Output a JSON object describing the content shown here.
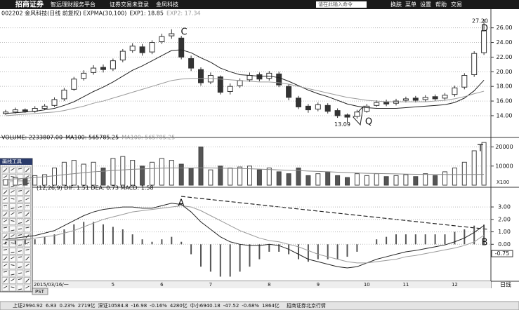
{
  "header": {
    "logo": "招商证券",
    "menu": [
      "智远理财服务平台",
      "证券交易未登录",
      "金凤科技"
    ],
    "command": "请在此输入命令",
    "buttons": [
      "换肤",
      "菜单",
      "设置",
      "帮助",
      "交易"
    ]
  },
  "chart_data": [
    {
      "type": "candlestick",
      "title": "002202 金风科技(日线 前复权) EXPMA(30,100)",
      "legend": [
        "EXP1: 18.85",
        "EXP2: 17.34"
      ],
      "categories": [
        "2015/03/16/一",
        null,
        null,
        null,
        null,
        null,
        null,
        null,
        null,
        null,
        null,
        "5",
        null,
        null,
        null,
        null,
        "6",
        null,
        null,
        null,
        null,
        "7",
        null,
        null,
        null,
        null,
        null,
        "8",
        null,
        null,
        null,
        null,
        "9",
        null,
        null,
        null,
        null,
        "10",
        null,
        null,
        null,
        "11",
        null,
        null,
        null,
        null,
        "12",
        null,
        null,
        null
      ],
      "open": [
        14.3,
        14.5,
        14.8,
        14.6,
        15.0,
        15.4,
        16.3,
        17.6,
        19.1,
        19.9,
        20.6,
        20.4,
        21.6,
        22.9,
        23.4,
        22.7,
        24.1,
        24.9,
        24.6,
        21.8,
        20.3,
        18.6,
        19.3,
        17.3,
        18.1,
        18.9,
        19.6,
        19.1,
        19.7,
        18.0,
        16.4,
        15.3,
        14.9,
        15.4,
        14.7,
        14.1,
        13.9,
        14.6,
        15.4,
        15.9,
        15.7,
        16.1,
        16.4,
        16.2,
        16.6,
        16.4,
        16.9,
        17.9,
        19.6,
        22.6
      ],
      "high": [
        14.8,
        15.1,
        15.0,
        15.3,
        15.6,
        16.5,
        17.8,
        19.3,
        20.2,
        20.9,
        21.0,
        21.8,
        23.1,
        23.9,
        23.8,
        24.3,
        25.2,
        25.8,
        24.9,
        22.2,
        20.6,
        19.9,
        19.5,
        18.4,
        19.1,
        19.9,
        19.9,
        20.1,
        20.0,
        18.3,
        16.7,
        15.6,
        15.8,
        15.7,
        15.0,
        14.3,
        14.8,
        15.6,
        16.1,
        16.2,
        16.3,
        16.6,
        16.7,
        16.8,
        16.9,
        17.1,
        18.1,
        19.8,
        22.8,
        27.2
      ],
      "low": [
        14.1,
        14.3,
        14.4,
        14.4,
        14.8,
        15.2,
        16.0,
        17.4,
        18.8,
        19.6,
        19.9,
        20.1,
        21.3,
        22.6,
        22.2,
        22.4,
        23.8,
        24.5,
        21.7,
        20.1,
        18.1,
        18.3,
        16.9,
        16.9,
        17.8,
        18.6,
        18.7,
        18.8,
        17.9,
        16.1,
        14.9,
        14.4,
        14.6,
        14.3,
        13.7,
        13.09,
        13.6,
        14.4,
        15.2,
        15.3,
        15.4,
        15.8,
        15.8,
        15.9,
        16.0,
        16.1,
        16.6,
        17.6,
        19.3,
        22.3
      ],
      "close": [
        14.5,
        14.8,
        14.6,
        15.0,
        15.3,
        16.2,
        17.5,
        19.0,
        19.8,
        20.5,
        20.3,
        21.5,
        22.8,
        23.5,
        22.6,
        24.0,
        24.8,
        25.2,
        22.0,
        20.5,
        18.5,
        19.5,
        17.2,
        18.0,
        18.8,
        19.5,
        19.0,
        19.8,
        18.2,
        16.5,
        15.2,
        14.8,
        15.5,
        14.6,
        14.0,
        13.8,
        14.5,
        15.3,
        15.8,
        15.6,
        16.0,
        16.3,
        16.1,
        16.5,
        16.3,
        16.8,
        17.8,
        19.5,
        22.5,
        25.6
      ],
      "lines": [
        {
          "color": "#222222",
          "values": [
            14.3,
            14.4,
            14.5,
            14.6,
            14.8,
            15.0,
            15.4,
            15.9,
            16.6,
            17.3,
            17.9,
            18.6,
            19.4,
            20.2,
            20.8,
            21.5,
            22.2,
            22.9,
            23.0,
            22.6,
            21.9,
            21.3,
            20.5,
            20.0,
            19.6,
            19.5,
            19.4,
            19.4,
            19.2,
            18.7,
            18.1,
            17.5,
            17.0,
            16.6,
            16.1,
            15.6,
            15.3,
            15.1,
            15.0,
            15.0,
            15.0,
            15.1,
            15.2,
            15.3,
            15.4,
            15.5,
            15.8,
            16.4,
            17.4,
            18.85
          ]
        },
        {
          "color": "#9a9a9a",
          "values": [
            14.0,
            14.1,
            14.2,
            14.3,
            14.4,
            14.5,
            14.7,
            15.0,
            15.3,
            15.7,
            16.0,
            16.4,
            16.8,
            17.2,
            17.6,
            18.0,
            18.4,
            18.8,
            19.0,
            19.1,
            19.1,
            19.1,
            19.0,
            18.9,
            18.8,
            18.7,
            18.6,
            18.6,
            18.5,
            18.3,
            18.0,
            17.7,
            17.4,
            17.1,
            16.8,
            16.5,
            16.3,
            16.1,
            16.0,
            15.9,
            15.9,
            15.9,
            15.9,
            15.9,
            16.0,
            16.1,
            16.3,
            16.6,
            17.0,
            17.34
          ]
        }
      ],
      "price_labels": [
        {
          "value": 27.2,
          "label": "27.20"
        },
        {
          "value": 13.09,
          "label": "13.09"
        }
      ],
      "annotations": [
        "C",
        "D",
        "Q"
      ],
      "ylim": [
        11.6,
        27.5
      ],
      "yticks": [
        {
          "value": 14,
          "label": "14.00"
        },
        {
          "value": 16,
          "label": "16.00"
        },
        {
          "value": 18,
          "label": "18.00"
        },
        {
          "value": 20,
          "label": "20.00"
        },
        {
          "value": 22,
          "label": "22.00"
        },
        {
          "value": 24,
          "label": "24.00"
        },
        {
          "value": 26,
          "label": "26.00"
        }
      ],
      "grid": true
    },
    {
      "type": "bar",
      "title": "VOLUME: 2233807.00",
      "legend": [
        "MA100: 565785.25",
        "MA100: 565785.25"
      ],
      "unit": "X100",
      "values": [
        3000,
        4000,
        3500,
        5000,
        5500,
        9000,
        12000,
        13000,
        11000,
        12000,
        9000,
        14000,
        15000,
        13000,
        10000,
        12000,
        14000,
        13000,
        11000,
        9000,
        20000,
        8000,
        10000,
        9000,
        9500,
        10000,
        8000,
        9000,
        7000,
        6000,
        9000,
        5000,
        6000,
        7000,
        5000,
        4000,
        6000,
        5000,
        6000,
        4500,
        5000,
        5500,
        4500,
        6000,
        5000,
        7000,
        9000,
        12000,
        18000,
        22338.07
      ],
      "lines": [
        {
          "color": "#888888",
          "values": [
            3000,
            3300,
            3600,
            4000,
            4400,
            4900,
            5500,
            6000,
            6500,
            7000,
            7300,
            7700,
            8000,
            8300,
            8500,
            8700,
            8900,
            9000,
            9000,
            9000,
            9100,
            9000,
            8900,
            8800,
            8700,
            8600,
            8400,
            8200,
            8000,
            7800,
            7600,
            7400,
            7200,
            7000,
            6800,
            6600,
            6400,
            6200,
            6100,
            6000,
            5900,
            5800,
            5700,
            5650,
            5600,
            5580,
            5570,
            5590,
            5620,
            5657.8525
          ]
        }
      ],
      "annotations": [
        "T"
      ],
      "ylim": [
        0,
        23500
      ],
      "yticks": [
        10000,
        20000
      ],
      "grid": true
    },
    {
      "type": "macd",
      "title": "(12,26,9) DIF: 1.51 DEA: 0.73 MACD: 1.58",
      "dif": [
        0.4,
        0.5,
        0.6,
        0.7,
        0.9,
        1.1,
        1.5,
        1.9,
        2.3,
        2.6,
        2.8,
        2.9,
        3.0,
        3.0,
        2.9,
        2.9,
        3.1,
        3.3,
        3.2,
        2.6,
        1.8,
        1.2,
        0.6,
        0.2,
        0.0,
        -0.1,
        -0.1,
        0.0,
        -0.1,
        -0.4,
        -0.8,
        -1.2,
        -1.4,
        -1.6,
        -1.8,
        -1.9,
        -1.8,
        -1.5,
        -1.2,
        -1.0,
        -0.8,
        -0.6,
        -0.5,
        -0.35,
        -0.2,
        -0.05,
        0.2,
        0.5,
        0.95,
        1.51
      ],
      "dea": [
        0.3,
        0.35,
        0.4,
        0.5,
        0.6,
        0.7,
        0.9,
        1.1,
        1.4,
        1.7,
        2.0,
        2.2,
        2.4,
        2.6,
        2.7,
        2.8,
        2.9,
        3.0,
        3.1,
        3.0,
        2.7,
        2.3,
        1.9,
        1.5,
        1.1,
        0.8,
        0.5,
        0.3,
        0.2,
        0.0,
        -0.2,
        -0.5,
        -0.8,
        -1.0,
        -1.2,
        -1.4,
        -1.5,
        -1.5,
        -1.4,
        -1.3,
        -1.2,
        -1.0,
        -0.9,
        -0.75,
        -0.6,
        -0.45,
        -0.3,
        -0.1,
        0.2,
        0.73
      ],
      "macd": [
        0.2,
        0.3,
        0.4,
        0.4,
        0.6,
        0.8,
        1.2,
        1.6,
        1.8,
        1.8,
        1.6,
        1.4,
        1.2,
        0.8,
        0.4,
        0.2,
        0.4,
        0.6,
        0.2,
        -0.8,
        -1.8,
        -2.2,
        -2.6,
        -2.6,
        -2.2,
        -1.8,
        -1.2,
        -0.6,
        -0.6,
        -0.8,
        -1.2,
        -1.4,
        -1.2,
        -1.2,
        -1.2,
        -1.0,
        -0.6,
        0.0,
        0.4,
        0.6,
        0.8,
        0.8,
        0.8,
        0.8,
        0.8,
        0.8,
        1.0,
        1.2,
        1.5,
        1.58
      ],
      "highlight": {
        "value": -0.75,
        "label": "-0.75"
      },
      "annotations": [
        "A",
        "B"
      ],
      "ylim": [
        -2.8,
        4.3
      ],
      "yticks": [
        {
          "value": 3,
          "label": "3.00"
        },
        {
          "value": 2,
          "label": "2.00"
        },
        {
          "value": 1,
          "label": "1.00"
        },
        {
          "value": 0,
          "label": "0.00"
        }
      ],
      "grid": true
    }
  ],
  "toolbox": {
    "title": "画线工具"
  },
  "period": "日线",
  "tab": "PST",
  "status_bar": [
    "上证2994.92",
    "6.83",
    "0.23%",
    "2719亿",
    "深证10584.8",
    "-16.98",
    "-0.16%",
    "4280亿",
    "中小6940.18",
    "-47.52",
    "-0.68%",
    "1864亿",
    "招商证券北京行情"
  ]
}
